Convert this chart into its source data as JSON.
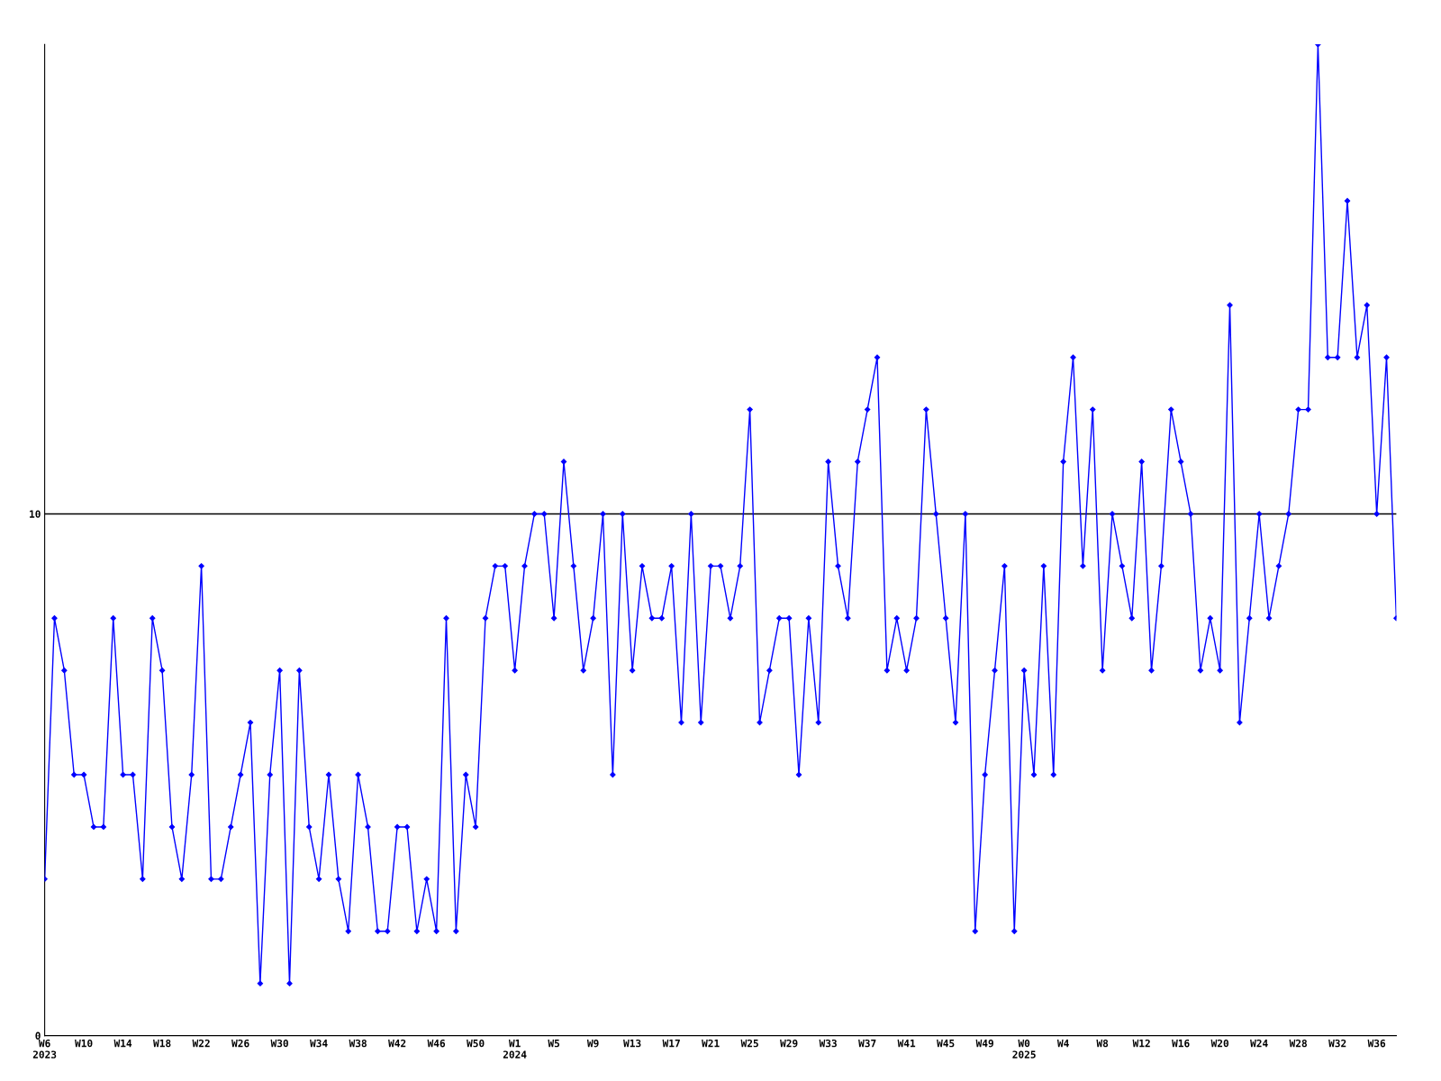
{
  "chart_data": {
    "type": "line",
    "categories": [
      "W6\n2023",
      null,
      null,
      null,
      "W10",
      null,
      null,
      null,
      "W14",
      null,
      null,
      null,
      "W18",
      null,
      null,
      null,
      "W22",
      null,
      null,
      null,
      "W26",
      null,
      null,
      null,
      "W30",
      null,
      null,
      null,
      "W34",
      null,
      null,
      null,
      "W38",
      null,
      null,
      null,
      "W42",
      null,
      null,
      null,
      "W46",
      null,
      null,
      null,
      "W50",
      null,
      null,
      null,
      "W1\n2024",
      null,
      null,
      null,
      "W5",
      null,
      null,
      null,
      "W9",
      null,
      null,
      null,
      "W13",
      null,
      null,
      null,
      "W17",
      null,
      null,
      null,
      "W21",
      null,
      null,
      null,
      "W25",
      null,
      null,
      null,
      "W29",
      null,
      null,
      null,
      "W33",
      null,
      null,
      null,
      "W37",
      null,
      null,
      null,
      "W41",
      null,
      null,
      null,
      "W45",
      null,
      null,
      null,
      "W49",
      null,
      null,
      null,
      "W0\n2025",
      null,
      null,
      null,
      "W4",
      null,
      null,
      null,
      "W8",
      null,
      null,
      null,
      "W12",
      null,
      null,
      null,
      "W16",
      null,
      null,
      null,
      "W20",
      null,
      null,
      null,
      "W24",
      null,
      null,
      null,
      "W28",
      null,
      null,
      null,
      "W32",
      null,
      null,
      null,
      "W36",
      null,
      null
    ],
    "series": [
      {
        "color": "#0000ff",
        "values": [
          3,
          8,
          7,
          5,
          5,
          4,
          4,
          8,
          5,
          5,
          3,
          8,
          7,
          4,
          3,
          5,
          9,
          3,
          3,
          4,
          5,
          6,
          1,
          5,
          7,
          1,
          7,
          4,
          3,
          5,
          3,
          2,
          5,
          4,
          2,
          2,
          4,
          4,
          2,
          3,
          2,
          8,
          2,
          5,
          4,
          8,
          9,
          9,
          7,
          9,
          10,
          10,
          8,
          11,
          9,
          7,
          8,
          10,
          5,
          10,
          7,
          9,
          8,
          8,
          9,
          6,
          10,
          6,
          9,
          9,
          8,
          9,
          12,
          6,
          7,
          8,
          8,
          5,
          8,
          6,
          11,
          9,
          8,
          11,
          12,
          13,
          7,
          8,
          7,
          8,
          12,
          10,
          8,
          6,
          10,
          2,
          5,
          7,
          9,
          2,
          7,
          5,
          9,
          5,
          11,
          13,
          9,
          12,
          7,
          10,
          9,
          8,
          11,
          7,
          9,
          12,
          11,
          10,
          7,
          8,
          7,
          14,
          6,
          8,
          10,
          8,
          9,
          10,
          12,
          12,
          19,
          13,
          13,
          16,
          13,
          14,
          10,
          13,
          8
        ]
      }
    ],
    "ylim": [
      0,
      19
    ],
    "yticks": [
      0,
      10
    ],
    "grid": "y",
    "marker": "diamond",
    "line_style": "solid"
  }
}
